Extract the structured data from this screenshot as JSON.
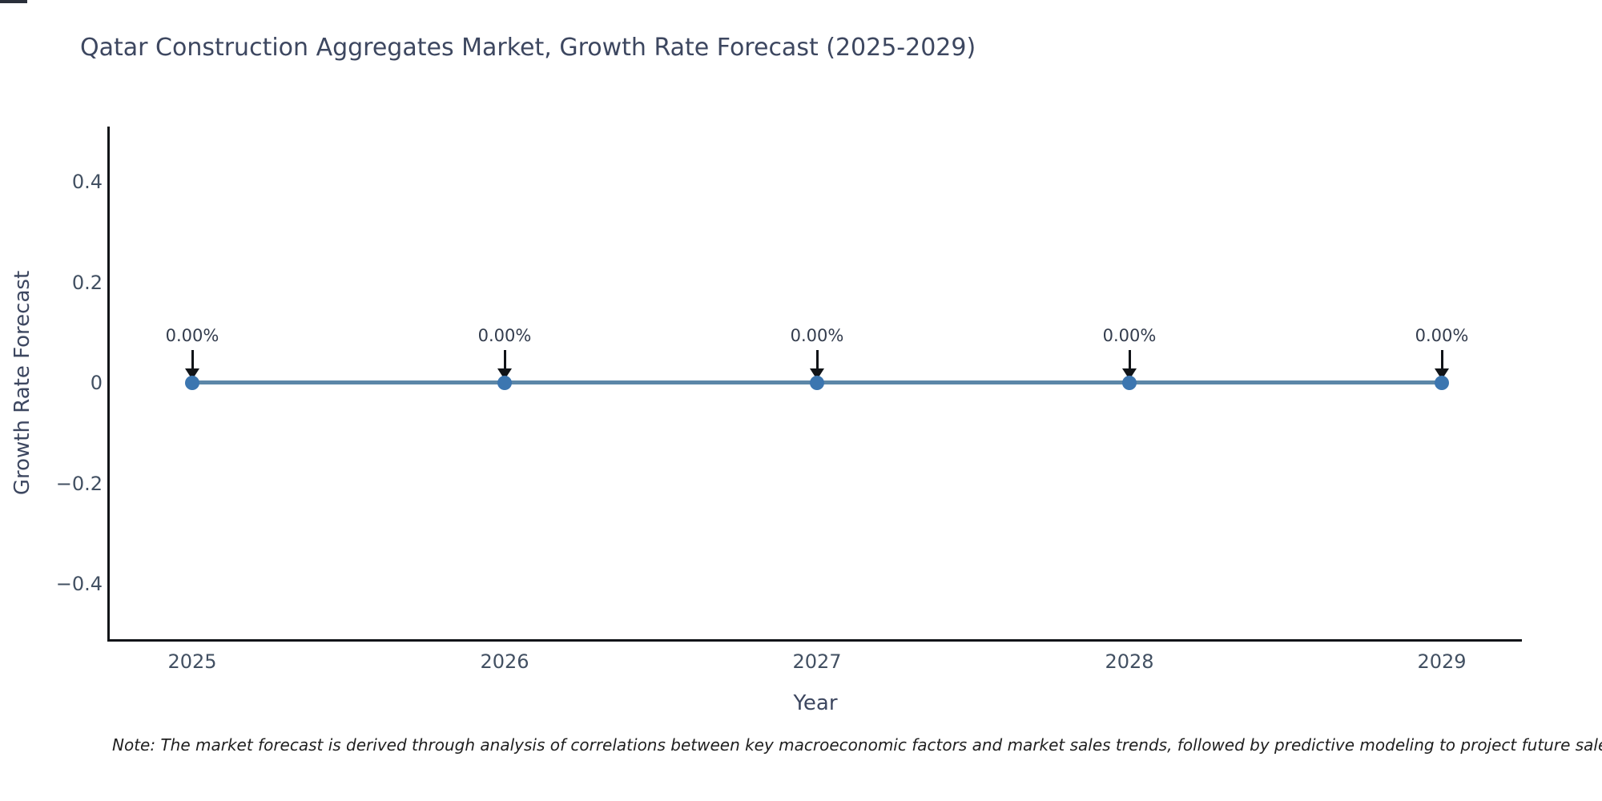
{
  "title": "Qatar Construction Aggregates Market, Growth Rate Forecast (2025-2029)",
  "note": "Note: The market forecast is derived through analysis of correlations between key macroeconomic factors and market sales trends, followed by predictive modeling to project future sales.",
  "chart_data": {
    "type": "line",
    "title": "Qatar Construction Aggregates Market, Growth Rate Forecast (2025-2029)",
    "xlabel": "Year",
    "ylabel": "Growth Rate Forecast",
    "x": [
      2025,
      2026,
      2027,
      2028,
      2029
    ],
    "x_tick_labels": [
      "2025",
      "2026",
      "2027",
      "2028",
      "2029"
    ],
    "series": [
      {
        "name": "Growth Rate Forecast",
        "values": [
          0,
          0,
          0,
          0,
          0
        ]
      }
    ],
    "point_labels": [
      "0.00%",
      "0.00%",
      "0.00%",
      "0.00%",
      "0.00%"
    ],
    "y_tick_labels": [
      "0.4",
      "0.2",
      "0",
      "−0.2",
      "−0.4"
    ],
    "y_tick_values": [
      0.4,
      0.2,
      0,
      -0.2,
      -0.4
    ],
    "ylim": [
      -0.51,
      0.51
    ],
    "grid": false,
    "legend_position": "none",
    "annotations_have_arrows": true,
    "colors": {
      "line": "#5c87a8",
      "marker": "#3c76b0",
      "axis": "#111418",
      "title_text": "#3d4760",
      "tick_text": "#425062",
      "annotation_text": "#333c4d",
      "note_text": "#1f1f1f"
    }
  }
}
